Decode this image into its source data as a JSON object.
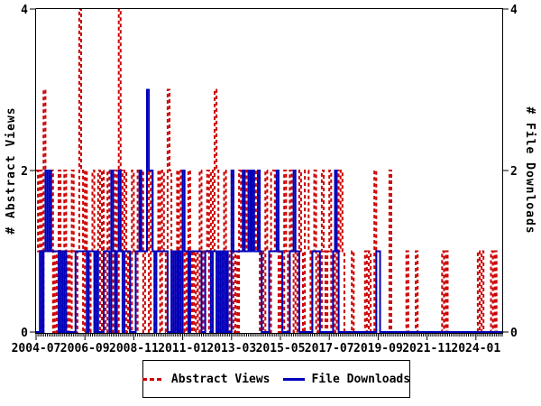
{
  "chart_data": {
    "type": "line",
    "subtype": "step-impulse",
    "title": "",
    "x_start": "2004-07",
    "x_step": "1 month",
    "x_tick_labels": [
      "2004-07",
      "2006-09",
      "2008-11",
      "2011-01",
      "2013-03",
      "2015-05",
      "2017-07",
      "2019-09",
      "2021-11",
      "2024-01"
    ],
    "x_tick_month_indices": [
      0,
      26,
      52,
      78,
      104,
      130,
      156,
      182,
      208,
      234
    ],
    "ylim": [
      0,
      4
    ],
    "y_ticks": [
      0,
      2,
      4
    ],
    "left_ylabel": "# Abstract Views",
    "right_ylabel": "# File Downloads",
    "grid": false,
    "legend_position": "bottom-center",
    "axis_color": "#000000",
    "series": [
      {
        "name": "Abstract Views",
        "color": "#cc0000",
        "style": "dashed",
        "axis": "left",
        "values": [
          2,
          1,
          2,
          0,
          3,
          2,
          1,
          1,
          2,
          0,
          1,
          0,
          2,
          1,
          0,
          2,
          0,
          1,
          0,
          2,
          1,
          0,
          1,
          4,
          2,
          0,
          2,
          1,
          0,
          1,
          2,
          0,
          1,
          2,
          0,
          2,
          1,
          0,
          2,
          1,
          0,
          1,
          2,
          0,
          4,
          2,
          1,
          2,
          0,
          1,
          0,
          2,
          1,
          0,
          2,
          1,
          2,
          0,
          1,
          2,
          0,
          2,
          1,
          0,
          1,
          2,
          0,
          2,
          1,
          0,
          3,
          2,
          1,
          0,
          1,
          2,
          0,
          2,
          1,
          0,
          1,
          2,
          0,
          1,
          0,
          1,
          0,
          2,
          1,
          0,
          1,
          2,
          0,
          2,
          1,
          3,
          2,
          0,
          1,
          0,
          2,
          1,
          0,
          1,
          2,
          0,
          1,
          0,
          2,
          1,
          2,
          1,
          2,
          1,
          2,
          1,
          2,
          1,
          2,
          0,
          1,
          0,
          2,
          1,
          0,
          2,
          2,
          1,
          2,
          0,
          1,
          0,
          2,
          1,
          0,
          2,
          1,
          0,
          1,
          0,
          2,
          1,
          0,
          2,
          2,
          1,
          0,
          1,
          2,
          0,
          1,
          0,
          2,
          1,
          0,
          1,
          2,
          0,
          1,
          0,
          2,
          1,
          2,
          1,
          0,
          0,
          0,
          0,
          1,
          0,
          0,
          0,
          0,
          0,
          0,
          1,
          0,
          1,
          0,
          0,
          2,
          0,
          0,
          0,
          0,
          0,
          0,
          0,
          2,
          0,
          0,
          0,
          0,
          0,
          0,
          0,
          0,
          1,
          0,
          0,
          0,
          0,
          1,
          0,
          0,
          0,
          0,
          0,
          0,
          0,
          0,
          0,
          0,
          0,
          0,
          0,
          1,
          0,
          1,
          0,
          0,
          0,
          0,
          0,
          0,
          0,
          0,
          0,
          0,
          0,
          0,
          0,
          0,
          0,
          0,
          1,
          0,
          1,
          0,
          0,
          0,
          0,
          1,
          0,
          1,
          0,
          0,
          0
        ]
      },
      {
        "name": "File Downloads",
        "color": "#0000bb",
        "style": "solid",
        "axis": "right",
        "values": [
          0,
          0,
          1,
          0,
          1,
          2,
          1,
          2,
          1,
          1,
          1,
          1,
          0,
          1,
          0,
          1,
          0,
          0,
          0,
          0,
          0,
          1,
          1,
          1,
          1,
          1,
          1,
          0,
          1,
          1,
          1,
          0,
          1,
          0,
          0,
          0,
          1,
          1,
          1,
          0,
          2,
          1,
          0,
          1,
          2,
          1,
          0,
          1,
          1,
          1,
          0,
          0,
          0,
          1,
          1,
          2,
          1,
          1,
          1,
          3,
          2,
          2,
          1,
          0,
          1,
          1,
          1,
          1,
          1,
          1,
          0,
          0,
          1,
          0,
          1,
          0,
          1,
          0,
          2,
          1,
          1,
          0,
          1,
          1,
          1,
          1,
          1,
          1,
          0,
          0,
          1,
          1,
          1,
          0,
          1,
          1,
          0,
          1,
          0,
          1,
          0,
          1,
          0,
          0,
          2,
          1,
          1,
          1,
          1,
          1,
          2,
          1,
          1,
          2,
          1,
          2,
          1,
          1,
          2,
          1,
          0,
          0,
          0,
          0,
          1,
          1,
          1,
          1,
          2,
          1,
          1,
          0,
          0,
          0,
          0,
          1,
          1,
          2,
          1,
          1,
          0,
          0,
          0,
          0,
          0,
          0,
          0,
          1,
          1,
          1,
          1,
          0,
          0,
          0,
          0,
          0,
          0,
          0,
          1,
          2,
          1,
          0,
          0,
          0,
          0,
          0,
          0,
          0,
          0,
          0,
          0,
          0,
          0,
          0,
          0,
          0,
          0,
          0,
          0,
          0,
          0,
          1,
          1,
          0,
          0,
          0,
          0,
          0,
          0,
          0,
          0,
          0,
          0,
          0,
          0,
          0,
          0,
          0,
          0,
          0,
          0,
          0,
          0,
          0,
          0,
          0,
          0,
          0,
          0,
          0,
          0,
          0,
          0,
          0,
          0,
          0,
          0,
          0,
          0,
          0,
          0,
          0,
          0,
          0,
          0,
          0,
          0,
          0,
          0,
          0,
          0,
          0,
          0,
          0,
          0,
          0,
          0,
          0,
          0,
          0,
          0,
          0,
          0,
          0,
          0,
          0,
          0,
          0,
          0,
          0,
          0,
          0,
          0,
          0,
          0,
          0,
          0,
          0
        ]
      }
    ]
  },
  "legend": {
    "items": [
      {
        "label": "Abstract Views"
      },
      {
        "label": "File Downloads"
      }
    ]
  }
}
